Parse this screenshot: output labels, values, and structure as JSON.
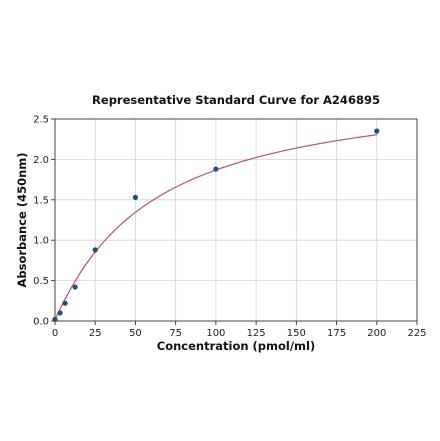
{
  "chart_data": {
    "type": "scatter",
    "title": "Representative Standard Curve for A246895",
    "xlabel": "Concentration (pmol/ml)",
    "ylabel": "Absorbance (450nm)",
    "xlim": [
      0,
      225
    ],
    "ylim": [
      0,
      2.5
    ],
    "xticks": [
      0,
      25,
      50,
      75,
      100,
      125,
      150,
      175,
      200,
      225
    ],
    "yticks": [
      0.0,
      0.5,
      1.0,
      1.5,
      2.0,
      2.5
    ],
    "ytick_labels": [
      "0.0",
      "0.5",
      "1.0",
      "1.5",
      "2.0",
      "2.5"
    ],
    "grid": true,
    "series": [
      {
        "x": [
          0,
          3.125,
          6.25,
          12.5,
          25,
          50,
          100,
          200
        ],
        "y": [
          0.02,
          0.1,
          0.22,
          0.42,
          0.88,
          1.53,
          1.88,
          2.35
        ]
      }
    ],
    "fit_curve": {
      "model": "4PL",
      "A": 0.02,
      "B": 1.05,
      "C": 60,
      "D": 2.95
    },
    "colors": {
      "points": "#1f4e79",
      "curve": "#b5536e"
    }
  }
}
